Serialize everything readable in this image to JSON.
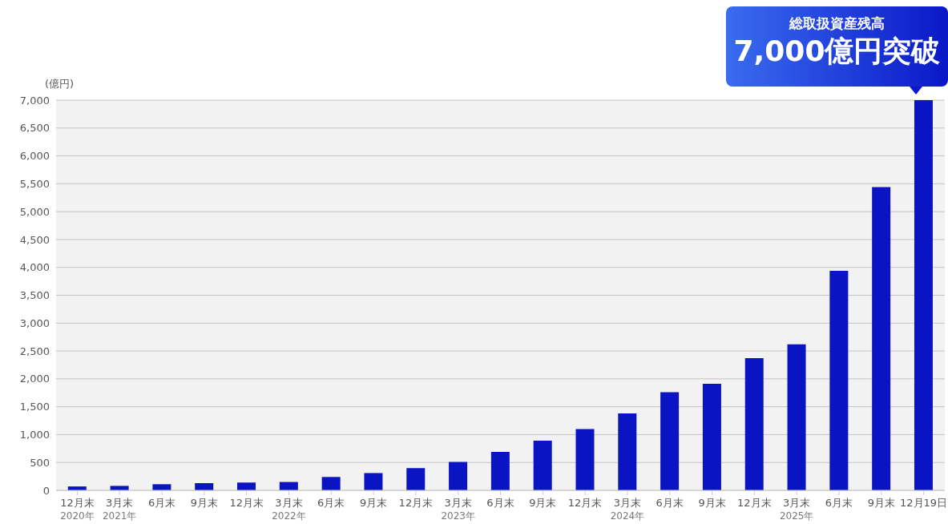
{
  "chart_data": {
    "type": "bar",
    "ylabel": "(億円)",
    "categories": [
      "12月末\n2020年",
      "3月末\n2021年",
      "6月末",
      "9月末",
      "12月末",
      "3月末\n2022年",
      "6月末",
      "9月末",
      "12月末",
      "3月末\n2023年",
      "6月末",
      "9月末",
      "12月末",
      "3月末\n2024年",
      "6月末",
      "9月末",
      "12月末",
      "3月末\n2025年",
      "6月末",
      "9月末",
      "12月19日"
    ],
    "values": [
      70,
      80,
      110,
      130,
      140,
      150,
      240,
      310,
      400,
      510,
      690,
      890,
      1100,
      1380,
      1760,
      1910,
      2370,
      2620,
      3940,
      5440,
      7000
    ],
    "color": "#0b14c2",
    "ylim": [
      0,
      7000
    ],
    "yticks": [
      0,
      {
        "value": 500,
        "label": "500"
      },
      {
        "value": 1000,
        "label": "1,000"
      },
      {
        "value": 1500,
        "label": "1,500"
      },
      {
        "value": 2000,
        "label": "2,000"
      },
      {
        "value": 2500,
        "label": "2,500"
      },
      {
        "value": 3000,
        "label": "3,000"
      },
      {
        "value": 3500,
        "label": "3,500"
      },
      {
        "value": 4000,
        "label": "4,000"
      },
      {
        "value": 4500,
        "label": "4,500"
      },
      {
        "value": 5000,
        "label": "5,000"
      },
      {
        "value": 5500,
        "label": "5,500"
      },
      {
        "value": 6000,
        "label": "6,000"
      },
      {
        "value": 6500,
        "label": "6,500"
      },
      {
        "value": 7000,
        "label": "7,000"
      }
    ],
    "grid": "y",
    "annotations": [
      "総取扱資産残高",
      "7,000億円突破"
    ]
  }
}
